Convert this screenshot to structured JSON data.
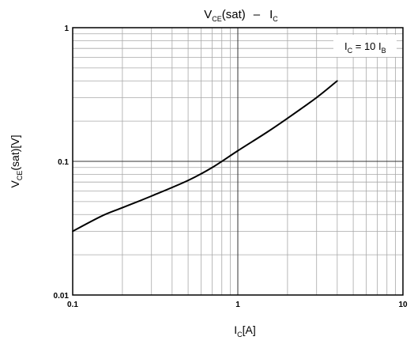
{
  "chart_data": {
    "type": "line",
    "title": {
      "main_v": "V",
      "main_sub": "CE",
      "main_rest": "(sat)",
      "dash": "–",
      "sec_i": "I",
      "sec_sub": "C"
    },
    "xlabel": {
      "i": "I",
      "sub": "C",
      "rest": "[A]"
    },
    "ylabel": {
      "v": "V",
      "sub": "CE",
      "rest": "(sat)[V]"
    },
    "annotation": {
      "i": "I",
      "sub": "C",
      "mid": " = 10 I",
      "sub2": "B"
    },
    "x_scale": "log",
    "y_scale": "log",
    "xlim": [
      0.1,
      10
    ],
    "ylim": [
      0.01,
      1
    ],
    "x_ticks": [
      "0.1",
      "1",
      "10"
    ],
    "y_ticks": [
      "0.01",
      "0.1",
      "1"
    ],
    "grid": true,
    "series": [
      {
        "color": "#000000",
        "x": [
          0.1,
          0.15,
          0.2,
          0.3,
          0.5,
          0.7,
          1.0,
          1.5,
          2.0,
          3.0,
          4.0
        ],
        "y": [
          0.03,
          0.039,
          0.045,
          0.055,
          0.072,
          0.09,
          0.12,
          0.165,
          0.21,
          0.3,
          0.4
        ]
      }
    ]
  }
}
